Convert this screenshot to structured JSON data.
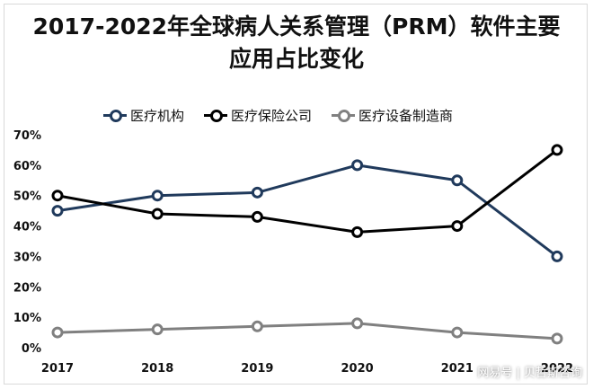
{
  "title": [
    "2017-2022年全球病人关系管理（PRM）软件主要",
    "应用占比变化"
  ],
  "watermark": "网易号 | 贝哲斯咨询",
  "chart_data": {
    "type": "line",
    "x": [
      "2017",
      "2018",
      "2019",
      "2020",
      "2021",
      "2022"
    ],
    "ylim": [
      0,
      70
    ],
    "yticks": [
      0,
      10,
      20,
      30,
      40,
      50,
      60,
      70
    ],
    "ytick_labels": [
      "0%",
      "10%",
      "20%",
      "30%",
      "40%",
      "50%",
      "60%",
      "70%"
    ],
    "legend_position": "top",
    "grid": false,
    "series": [
      {
        "name": "医疗机构",
        "color": "#203a5c",
        "values": [
          45,
          50,
          51,
          60,
          55,
          30
        ]
      },
      {
        "name": "医疗保险公司",
        "color": "#000000",
        "values": [
          50,
          44,
          43,
          38,
          40,
          65
        ]
      },
      {
        "name": "医疗设备制造商",
        "color": "#808080",
        "values": [
          5,
          6,
          7,
          8,
          5,
          3
        ]
      }
    ]
  }
}
